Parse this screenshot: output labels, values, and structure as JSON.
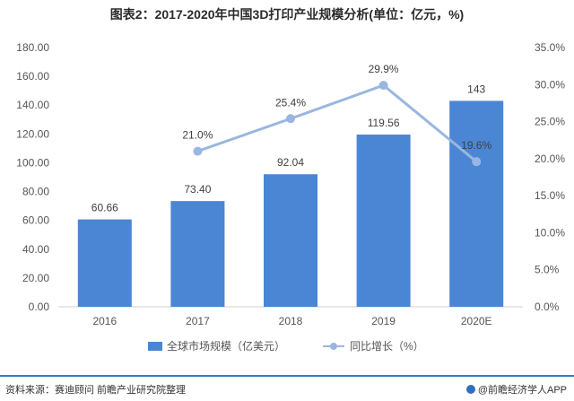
{
  "title": "图表2：2017-2020年中国3D打印产业规模分析(单位：亿元，%)",
  "source": "资料来源：赛迪顾问 前瞻产业研究院整理",
  "brand": "@前瞻经济学人APP",
  "colors": {
    "bar": "#4a86d4",
    "line": "#9ab6e0",
    "axis_text": "#555555",
    "label_text": "#404040"
  },
  "chart_data": {
    "type": "bar",
    "categories": [
      "2016",
      "2017",
      "2018",
      "2019",
      "2020E"
    ],
    "series": [
      {
        "name": "全球市场规模（亿美元）",
        "type": "bar",
        "axis": "left",
        "values": [
          60.66,
          73.4,
          92.04,
          119.56,
          143
        ],
        "labels": [
          "60.66",
          "73.40",
          "92.04",
          "119.56",
          "143"
        ]
      },
      {
        "name": "同比增长（%）",
        "type": "line",
        "axis": "right",
        "values": [
          null,
          21.0,
          25.4,
          29.9,
          19.6
        ],
        "labels": [
          "",
          "21.0%",
          "25.4%",
          "29.9%",
          "19.6%"
        ]
      }
    ],
    "y_left": {
      "min": 0,
      "max": 180,
      "step": 20,
      "ticks": [
        "0.00",
        "20.00",
        "40.00",
        "60.00",
        "80.00",
        "100.00",
        "120.00",
        "140.00",
        "160.00",
        "180.00"
      ]
    },
    "y_right": {
      "min": 0,
      "max": 35,
      "step": 5,
      "ticks": [
        "0.0%",
        "5.0%",
        "10.0%",
        "15.0%",
        "20.0%",
        "25.0%",
        "30.0%",
        "35.0%"
      ]
    },
    "grid": false,
    "legend_position": "bottom"
  }
}
